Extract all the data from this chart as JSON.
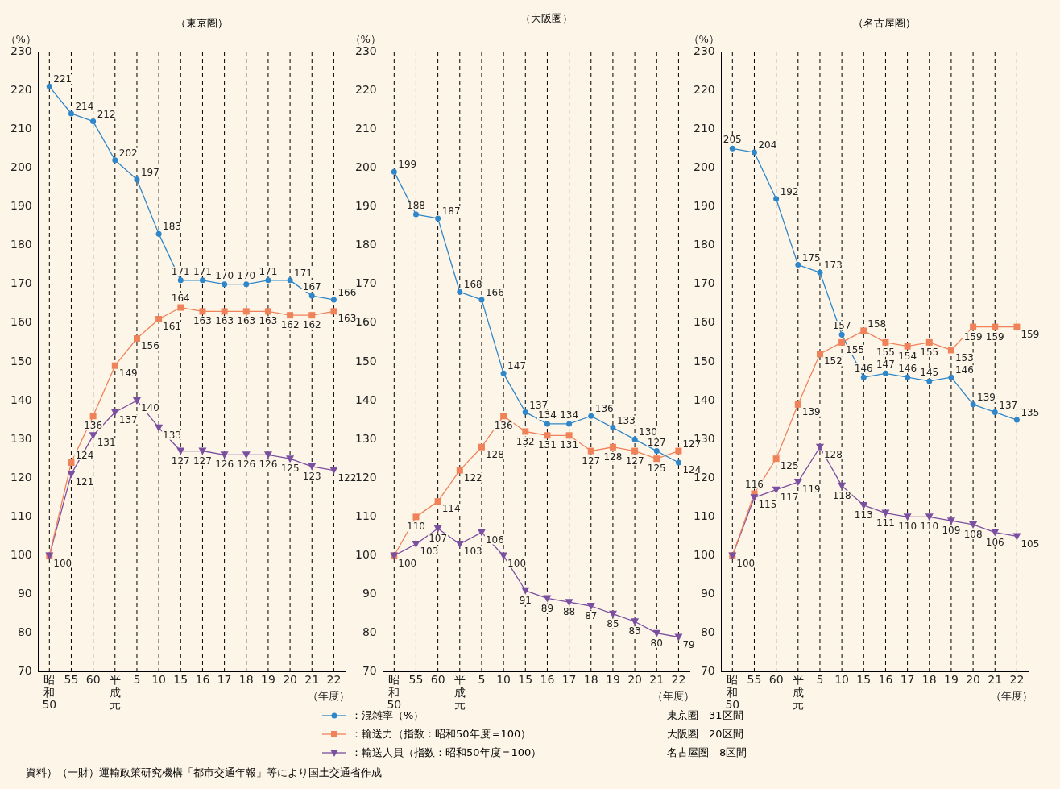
{
  "chart_data": [
    {
      "type": "line",
      "title": "（東京圏）",
      "ylabel": "（%）",
      "xlabel": "（年度）",
      "categories": [
        "昭和50",
        "55",
        "60",
        "平成元",
        "5",
        "10",
        "15",
        "16",
        "17",
        "18",
        "19",
        "20",
        "21",
        "22"
      ],
      "ylim": [
        70,
        230
      ],
      "yticks": [
        70,
        80,
        90,
        100,
        110,
        120,
        130,
        140,
        150,
        160,
        170,
        180,
        190,
        200,
        210,
        220,
        230
      ],
      "grid": "x",
      "legend": "bottom",
      "data_labels": true,
      "series": [
        {
          "name": "：混雑率（%）",
          "color": "#2f86c8",
          "marker": "circle",
          "values": [
            221,
            214,
            212,
            202,
            197,
            183,
            171,
            171,
            170,
            170,
            171,
            171,
            167,
            166
          ]
        },
        {
          "name": "：輸送力（指数：昭和50年度＝100）",
          "color": "#f0825a",
          "marker": "square",
          "values": [
            100,
            124,
            136,
            149,
            156,
            161,
            164,
            163,
            163,
            163,
            163,
            162,
            162,
            163
          ],
          "value_labels": [
            null,
            "124",
            "136",
            "149",
            "156",
            "161",
            "164",
            "163",
            "163",
            "163",
            "163",
            "162",
            "162",
            "163"
          ]
        },
        {
          "name": "：輸送人員（指数：昭和50年度＝100）",
          "color": "#7a4fa0",
          "marker": "triangle",
          "values": [
            100,
            121,
            131,
            137,
            140,
            133,
            127,
            127,
            126,
            126,
            126,
            125,
            123,
            122
          ]
        }
      ],
      "annotations": [
        "東京圏　31区間",
        "資料）（一財）運輸政策研究機構「都市交通年報」等により国土交通省作成"
      ]
    },
    {
      "type": "line",
      "title": "（大阪圏）",
      "ylabel": "（%）",
      "xlabel": "（年度）",
      "categories": [
        "昭和50",
        "55",
        "60",
        "平成元",
        "5",
        "10",
        "15",
        "16",
        "17",
        "18",
        "19",
        "20",
        "21",
        "22"
      ],
      "ylim": [
        70,
        230
      ],
      "yticks": [
        70,
        80,
        90,
        100,
        110,
        120,
        130,
        140,
        150,
        160,
        170,
        180,
        190,
        200,
        210,
        220,
        230
      ],
      "grid": "x",
      "data_labels": true,
      "series": [
        {
          "color": "#2f86c8",
          "marker": "circle",
          "values": [
            199,
            188,
            187,
            168,
            166,
            147,
            137,
            134,
            134,
            136,
            133,
            130,
            127,
            124
          ]
        },
        {
          "color": "#f0825a",
          "marker": "square",
          "values": [
            100,
            110,
            114,
            122,
            128,
            136,
            132,
            131,
            131,
            127,
            128,
            127,
            125,
            127
          ],
          "value_labels": [
            null,
            "110",
            "114",
            "122",
            "128",
            "136",
            "132",
            "131",
            "131",
            "127",
            "128",
            "127",
            "125",
            "127"
          ]
        },
        {
          "color": "#7a4fa0",
          "marker": "triangle",
          "values": [
            100,
            103,
            107,
            103,
            106,
            100,
            91,
            89,
            88,
            87,
            85,
            83,
            80,
            79
          ]
        }
      ],
      "annotations": [
        "大阪圏　20区間"
      ]
    },
    {
      "type": "line",
      "title": "（名古屋圏）",
      "ylabel": "（%）",
      "xlabel": "（年度）",
      "categories": [
        "昭和50",
        "55",
        "60",
        "平成元",
        "5",
        "10",
        "15",
        "16",
        "17",
        "18",
        "19",
        "20",
        "21",
        "22"
      ],
      "ylim": [
        70,
        230
      ],
      "yticks": [
        70,
        80,
        90,
        100,
        110,
        120,
        130,
        140,
        150,
        160,
        170,
        180,
        190,
        200,
        210,
        220,
        230
      ],
      "grid": "x",
      "data_labels": true,
      "series": [
        {
          "color": "#2f86c8",
          "marker": "circle",
          "values": [
            205,
            204,
            192,
            175,
            173,
            157,
            146,
            147,
            146,
            145,
            146,
            139,
            137,
            135
          ]
        },
        {
          "color": "#f0825a",
          "marker": "square",
          "values": [
            100,
            116,
            125,
            139,
            152,
            155,
            158,
            155,
            154,
            155,
            153,
            159,
            159,
            159
          ],
          "value_labels": [
            null,
            "116",
            "125",
            "139",
            "152",
            "155",
            "158",
            "155",
            "154",
            "155",
            "153",
            "159",
            "159",
            "159"
          ]
        },
        {
          "color": "#7a4fa0",
          "marker": "triangle",
          "values": [
            100,
            115,
            117,
            119,
            128,
            118,
            113,
            111,
            110,
            110,
            109,
            108,
            106,
            105
          ]
        }
      ],
      "annotations": [
        "名古屋圏　8区間"
      ]
    }
  ]
}
